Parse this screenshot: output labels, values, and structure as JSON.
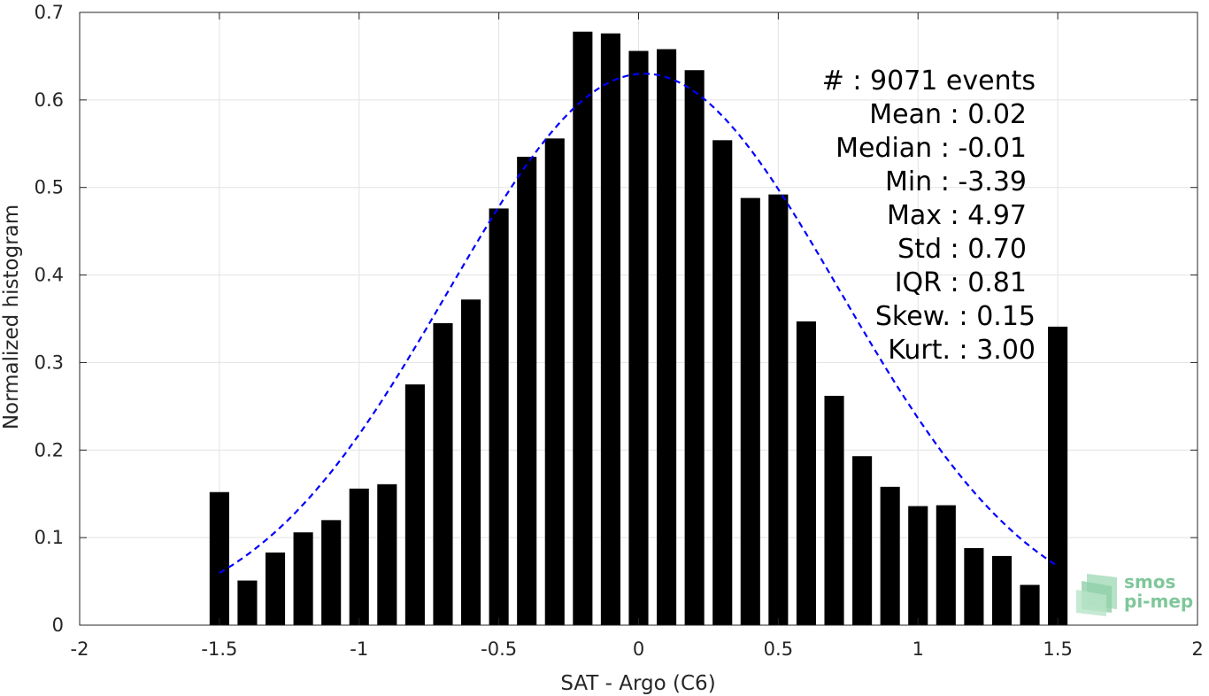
{
  "chart_data": {
    "type": "bar",
    "xlabel": "SAT - Argo (C6)",
    "ylabel": "Normalized histogram",
    "xlim": [
      -2,
      2
    ],
    "ylim": [
      0,
      0.7
    ],
    "grid": true,
    "x_ticks": [
      "-2",
      "-1.5",
      "-1",
      "-0.5",
      "0",
      "0.5",
      "1",
      "1.5",
      "2"
    ],
    "y_ticks": [
      "0",
      "0.1",
      "0.2",
      "0.3",
      "0.4",
      "0.5",
      "0.6",
      "0.7"
    ],
    "bar_color": "#000000",
    "bin_width": 0.1,
    "x": [
      -1.5,
      -1.4,
      -1.3,
      -1.2,
      -1.1,
      -1.0,
      -0.9,
      -0.8,
      -0.7,
      -0.6,
      -0.5,
      -0.4,
      -0.3,
      -0.2,
      -0.1,
      0.0,
      0.1,
      0.2,
      0.3,
      0.4,
      0.5,
      0.6,
      0.7,
      0.8,
      0.9,
      1.0,
      1.1,
      1.2,
      1.3,
      1.4,
      1.5
    ],
    "values": [
      0.152,
      0.051,
      0.083,
      0.106,
      0.12,
      0.156,
      0.161,
      0.275,
      0.345,
      0.372,
      0.476,
      0.535,
      0.556,
      0.678,
      0.676,
      0.656,
      0.658,
      0.634,
      0.554,
      0.488,
      0.492,
      0.347,
      0.262,
      0.193,
      0.158,
      0.136,
      0.137,
      0.088,
      0.079,
      0.046,
      0.341
    ],
    "fit_curve": {
      "type": "gaussian",
      "mean": 0.02,
      "std": 0.7,
      "style": "dashed",
      "color": "#0000ff"
    },
    "annotations": [
      "#  : 9071 events",
      "Mean : 0.02",
      "Median : -0.01",
      "Min : -3.39",
      "Max : 4.97",
      "Std : 0.70",
      "IQR : 0.81",
      "Skew. : 0.15",
      "Kurt. : 3.00"
    ]
  },
  "logo": {
    "line1": "smos",
    "line2": "pi-mep"
  }
}
